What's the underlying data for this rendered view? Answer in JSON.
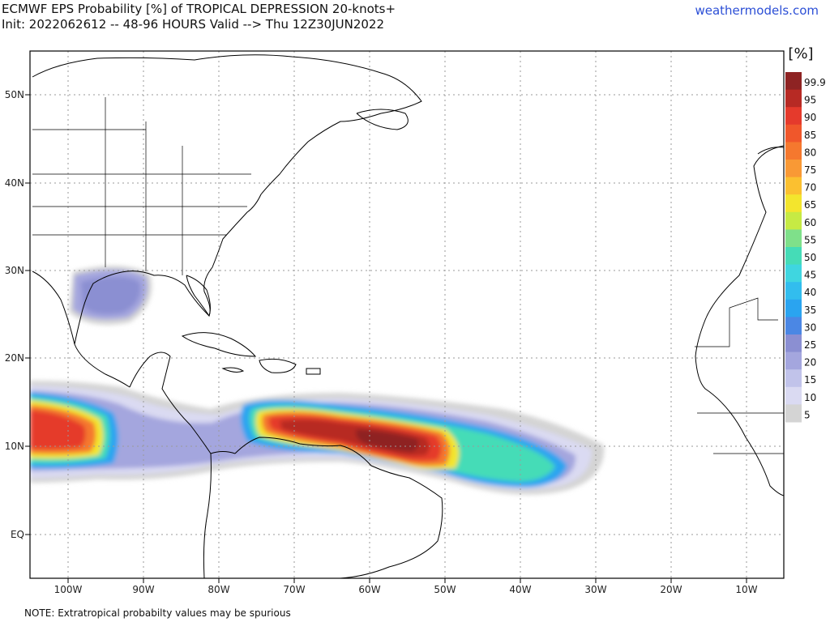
{
  "header": {
    "title_line1": "ECMWF EPS Probability [%] of TROPICAL DEPRESSION 20-knots+",
    "title_line2": "Init: 2022062612 -- 48-96 HOURS Valid --> Thu 12Z30JUN2022",
    "site": "weathermodels.com"
  },
  "note": "NOTE: Extratropical probabilty values may be spurious",
  "colorbar": {
    "unit": "[%]",
    "levels": [
      {
        "label": "99.9",
        "color": "#8e2323"
      },
      {
        "label": "95",
        "color": "#b72a24"
      },
      {
        "label": "90",
        "color": "#e53a2c"
      },
      {
        "label": "85",
        "color": "#f0572b"
      },
      {
        "label": "80",
        "color": "#f5782e"
      },
      {
        "label": "75",
        "color": "#f99935"
      },
      {
        "label": "70",
        "color": "#fbc030"
      },
      {
        "label": "65",
        "color": "#f3e52d"
      },
      {
        "label": "60",
        "color": "#c6ea44"
      },
      {
        "label": "55",
        "color": "#7fe08a"
      },
      {
        "label": "50",
        "color": "#45dcb7"
      },
      {
        "label": "45",
        "color": "#3fd6e0"
      },
      {
        "label": "40",
        "color": "#32bdee"
      },
      {
        "label": "35",
        "color": "#2aa4f0"
      },
      {
        "label": "30",
        "color": "#4b87e4"
      },
      {
        "label": "25",
        "color": "#8b8fd2"
      },
      {
        "label": "20",
        "color": "#a4a6de"
      },
      {
        "label": "15",
        "color": "#c1c3ea"
      },
      {
        "label": "10",
        "color": "#dadaf2"
      },
      {
        "label": "5",
        "color": "#d4d4d4"
      }
    ]
  },
  "axes": {
    "lat_labels": [
      "50N",
      "40N",
      "30N",
      "20N",
      "10N",
      "EQ"
    ],
    "lon_labels": [
      "100W",
      "90W",
      "80W",
      "70W",
      "60W",
      "50W",
      "40W",
      "30W",
      "20W",
      "10W"
    ]
  }
}
